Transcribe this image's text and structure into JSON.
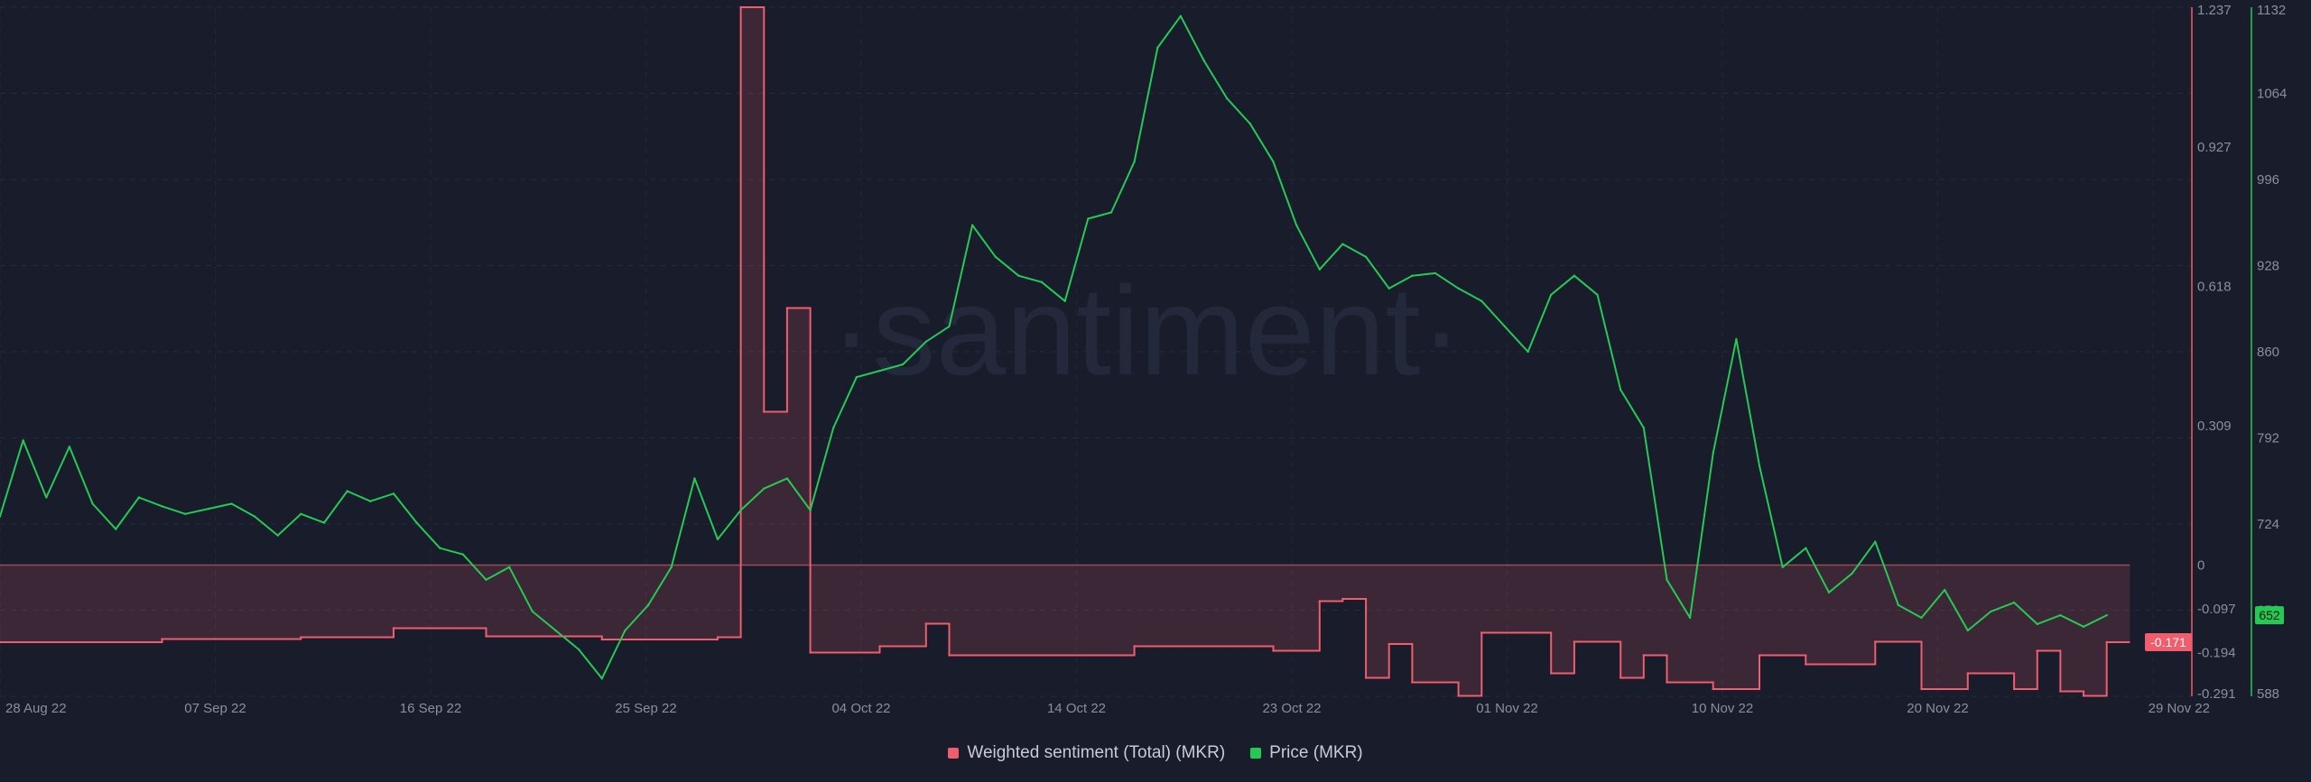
{
  "chart_data": {
    "type": "line",
    "title": "",
    "watermark": "·santiment·",
    "x_tick_labels": [
      "28 Aug 22",
      "07 Sep 22",
      "16 Sep 22",
      "25 Sep 22",
      "04 Oct 22",
      "14 Oct 22",
      "23 Oct 22",
      "01 Nov 22",
      "10 Nov 22",
      "20 Nov 22",
      "29 Nov 22"
    ],
    "x_range": [
      "2022-08-28",
      "2022-11-29"
    ],
    "series": [
      {
        "name": "Weighted sentiment (Total) (MKR)",
        "color": "#f05d6c",
        "axis": "left",
        "fill_between_zero": true,
        "points": [
          [
            "2022-08-28",
            -0.171
          ],
          [
            "2022-09-04",
            -0.164
          ],
          [
            "2022-09-10",
            -0.16
          ],
          [
            "2022-09-14",
            -0.14
          ],
          [
            "2022-09-18",
            -0.158
          ],
          [
            "2022-09-23",
            -0.165
          ],
          [
            "2022-09-28",
            -0.16
          ],
          [
            "2022-09-29",
            1.237
          ],
          [
            "2022-09-30",
            0.34
          ],
          [
            "2022-10-01",
            0.57
          ],
          [
            "2022-10-02",
            -0.194
          ],
          [
            "2022-10-05",
            -0.18
          ],
          [
            "2022-10-07",
            -0.13
          ],
          [
            "2022-10-08",
            -0.2
          ],
          [
            "2022-10-16",
            -0.18
          ],
          [
            "2022-10-22",
            -0.19
          ],
          [
            "2022-10-24",
            -0.08
          ],
          [
            "2022-10-25",
            -0.075
          ],
          [
            "2022-10-26",
            -0.25
          ],
          [
            "2022-10-27",
            -0.175
          ],
          [
            "2022-10-28",
            -0.26
          ],
          [
            "2022-10-30",
            -0.29
          ],
          [
            "2022-10-31",
            -0.15
          ],
          [
            "2022-11-03",
            -0.24
          ],
          [
            "2022-11-04",
            -0.17
          ],
          [
            "2022-11-06",
            -0.25
          ],
          [
            "2022-11-07",
            -0.2
          ],
          [
            "2022-11-08",
            -0.26
          ],
          [
            "2022-11-10",
            -0.275
          ],
          [
            "2022-11-12",
            -0.2
          ],
          [
            "2022-11-14",
            -0.22
          ],
          [
            "2022-11-17",
            -0.17
          ],
          [
            "2022-11-19",
            -0.275
          ],
          [
            "2022-11-21",
            -0.24
          ],
          [
            "2022-11-23",
            -0.275
          ],
          [
            "2022-11-24",
            -0.19
          ],
          [
            "2022-11-25",
            -0.28
          ],
          [
            "2022-11-26",
            -0.29
          ],
          [
            "2022-11-27",
            -0.171
          ]
        ]
      },
      {
        "name": "Price (MKR)",
        "color": "#26c954",
        "axis": "right",
        "points": [
          [
            "2022-08-28",
            730
          ],
          [
            "2022-08-29",
            790
          ],
          [
            "2022-08-30",
            745
          ],
          [
            "2022-08-31",
            785
          ],
          [
            "2022-09-01",
            740
          ],
          [
            "2022-09-02",
            720
          ],
          [
            "2022-09-03",
            745
          ],
          [
            "2022-09-04",
            738
          ],
          [
            "2022-09-05",
            732
          ],
          [
            "2022-09-06",
            736
          ],
          [
            "2022-09-07",
            740
          ],
          [
            "2022-09-08",
            730
          ],
          [
            "2022-09-09",
            715
          ],
          [
            "2022-09-10",
            732
          ],
          [
            "2022-09-11",
            725
          ],
          [
            "2022-09-12",
            750
          ],
          [
            "2022-09-13",
            742
          ],
          [
            "2022-09-14",
            748
          ],
          [
            "2022-09-15",
            725
          ],
          [
            "2022-09-16",
            705
          ],
          [
            "2022-09-17",
            700
          ],
          [
            "2022-09-18",
            680
          ],
          [
            "2022-09-19",
            690
          ],
          [
            "2022-09-20",
            655
          ],
          [
            "2022-09-21",
            640
          ],
          [
            "2022-09-22",
            625
          ],
          [
            "2022-09-23",
            602
          ],
          [
            "2022-09-24",
            640
          ],
          [
            "2022-09-25",
            660
          ],
          [
            "2022-09-26",
            690
          ],
          [
            "2022-09-27",
            760
          ],
          [
            "2022-09-28",
            712
          ],
          [
            "2022-09-29",
            735
          ],
          [
            "2022-09-30",
            752
          ],
          [
            "2022-10-01",
            760
          ],
          [
            "2022-10-02",
            735
          ],
          [
            "2022-10-03",
            800
          ],
          [
            "2022-10-04",
            840
          ],
          [
            "2022-10-05",
            845
          ],
          [
            "2022-10-06",
            850
          ],
          [
            "2022-10-07",
            868
          ],
          [
            "2022-10-08",
            880
          ],
          [
            "2022-10-09",
            960
          ],
          [
            "2022-10-10",
            935
          ],
          [
            "2022-10-11",
            920
          ],
          [
            "2022-10-12",
            915
          ],
          [
            "2022-10-13",
            900
          ],
          [
            "2022-10-14",
            965
          ],
          [
            "2022-10-15",
            970
          ],
          [
            "2022-10-16",
            1010
          ],
          [
            "2022-10-17",
            1100
          ],
          [
            "2022-10-18",
            1125
          ],
          [
            "2022-10-19",
            1090
          ],
          [
            "2022-10-20",
            1060
          ],
          [
            "2022-10-21",
            1040
          ],
          [
            "2022-10-22",
            1010
          ],
          [
            "2022-10-23",
            960
          ],
          [
            "2022-10-24",
            925
          ],
          [
            "2022-10-25",
            945
          ],
          [
            "2022-10-26",
            935
          ],
          [
            "2022-10-27",
            910
          ],
          [
            "2022-10-28",
            920
          ],
          [
            "2022-10-29",
            922
          ],
          [
            "2022-10-30",
            910
          ],
          [
            "2022-10-31",
            900
          ],
          [
            "2022-11-01",
            880
          ],
          [
            "2022-11-02",
            860
          ],
          [
            "2022-11-03",
            905
          ],
          [
            "2022-11-04",
            920
          ],
          [
            "2022-11-05",
            905
          ],
          [
            "2022-11-06",
            830
          ],
          [
            "2022-11-07",
            800
          ],
          [
            "2022-11-08",
            680
          ],
          [
            "2022-11-09",
            650
          ],
          [
            "2022-11-10",
            780
          ],
          [
            "2022-11-11",
            870
          ],
          [
            "2022-11-12",
            770
          ],
          [
            "2022-11-13",
            690
          ],
          [
            "2022-11-14",
            705
          ],
          [
            "2022-11-15",
            670
          ],
          [
            "2022-11-16",
            685
          ],
          [
            "2022-11-17",
            710
          ],
          [
            "2022-11-18",
            660
          ],
          [
            "2022-11-19",
            650
          ],
          [
            "2022-11-20",
            672
          ],
          [
            "2022-11-21",
            640
          ],
          [
            "2022-11-22",
            655
          ],
          [
            "2022-11-23",
            662
          ],
          [
            "2022-11-24",
            645
          ],
          [
            "2022-11-25",
            652
          ],
          [
            "2022-11-26",
            643
          ],
          [
            "2022-11-27",
            652
          ]
        ]
      }
    ],
    "y_left": {
      "label": "",
      "range": [
        -0.291,
        1.237
      ],
      "ticks": [
        -0.291,
        -0.194,
        -0.097,
        0,
        0.309,
        0.618,
        0.927,
        1.237
      ],
      "tick_labels": [
        "-0.291",
        "-0.194",
        "-0.097",
        "0",
        "0.309",
        "0.618",
        "0.927",
        "1.237"
      ],
      "last_value_label": "-0.171",
      "color": "#f05d6c"
    },
    "y_right": {
      "label": "",
      "range": [
        588,
        1132
      ],
      "ticks": [
        588,
        656,
        724,
        792,
        860,
        928,
        996,
        1064,
        1132
      ],
      "tick_labels": [
        "588",
        "656",
        "724",
        "792",
        "860",
        "928",
        "996",
        "1064",
        "1132"
      ],
      "last_value_label": "652",
      "color": "#26c954"
    },
    "grid": true,
    "legend_position": "bottom-center"
  }
}
